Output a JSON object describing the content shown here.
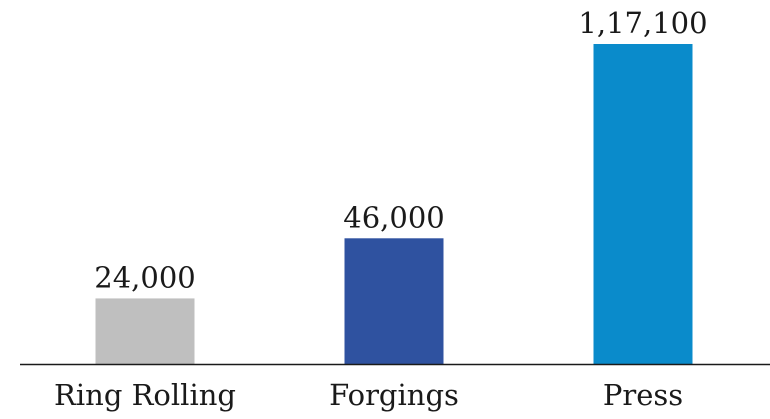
{
  "chart_data": {
    "type": "bar",
    "title": "",
    "xlabel": "",
    "ylabel": "",
    "categories": [
      "Ring Rolling",
      "Forgings",
      "Press"
    ],
    "values": [
      24000,
      46000,
      117100
    ],
    "value_labels": [
      "24,000",
      "46,000",
      "1,17,100"
    ],
    "colors": [
      "#bfbfbf",
      "#2f52a0",
      "#0a8bcb"
    ],
    "ylim": [
      0,
      117100
    ],
    "grid": false,
    "legend": "none",
    "axis_color": "#1a1a1a"
  }
}
